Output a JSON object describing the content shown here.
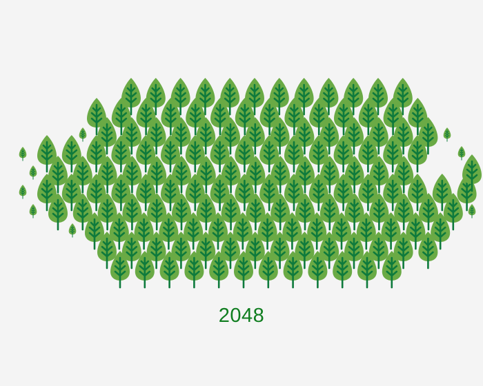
{
  "label": {
    "year": "2048"
  },
  "icon": "tree-icon",
  "colors": {
    "background": "#f4f4f4",
    "leaf": "#6aaa45",
    "trunk": "#0e7a3c",
    "label": "#0f7d1f"
  }
}
